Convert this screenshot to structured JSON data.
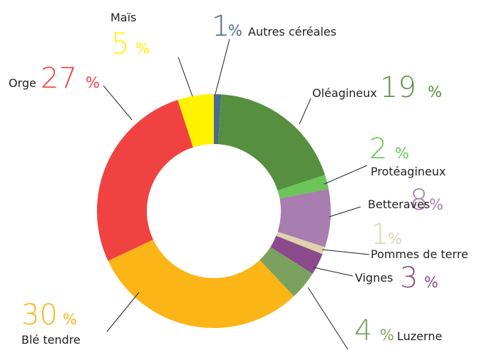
{
  "chart_data": {
    "type": "pie",
    "donut": true,
    "categories": [
      "Autres céréales",
      "Oléagineux",
      "Protéagineux",
      "Betteraves",
      "Pommes de terre",
      "Vignes",
      "Luzerne",
      "Blé tendre",
      "Orge",
      "Maïs"
    ],
    "values": [
      1,
      19,
      2,
      8,
      1,
      3,
      4,
      30,
      27,
      5
    ],
    "colors": [
      "#4a6b8a",
      "#568f3f",
      "#6cc55a",
      "#a87db0",
      "#e0d3ab",
      "#8a4a8c",
      "#7aa15e",
      "#fbb516",
      "#f04341",
      "#fef200"
    ],
    "unit": "%"
  }
}
